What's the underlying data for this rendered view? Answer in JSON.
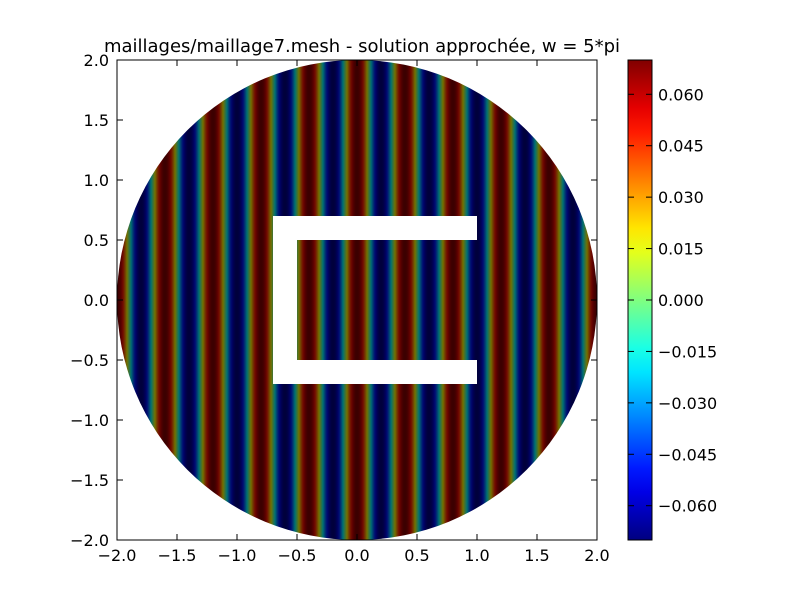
{
  "chart_data": {
    "type": "heatmap",
    "title": "maillages/maillage7.mesh - solution approchée, w = 5*pi",
    "xlabel": "",
    "ylabel": "",
    "xlim": [
      -2.0,
      2.0
    ],
    "ylim": [
      -2.0,
      2.0
    ],
    "x_ticks": [
      "−2.0",
      "−1.5",
      "−1.0",
      "−0.5",
      "0.0",
      "0.5",
      "1.0",
      "1.5",
      "2.0"
    ],
    "y_ticks": [
      "2.0",
      "1.5",
      "1.0",
      "0.5",
      "0.0",
      "−0.5",
      "−1.0",
      "−1.5",
      "−2.0"
    ],
    "x_tick_values": [
      -2.0,
      -1.5,
      -1.0,
      -0.5,
      0.0,
      0.5,
      1.0,
      1.5,
      2.0
    ],
    "y_tick_values": [
      2.0,
      1.5,
      1.0,
      0.5,
      0.0,
      -0.5,
      -1.0,
      -1.5,
      -2.0
    ],
    "domain": {
      "shape": "disk",
      "center": [
        0.0,
        0.0
      ],
      "radius": 2.0,
      "hole_polygon": [
        [
          -0.7,
          0.7
        ],
        [
          1.0,
          0.7
        ],
        [
          1.0,
          0.5
        ],
        [
          -0.5,
          0.5
        ],
        [
          -0.5,
          -0.5
        ],
        [
          1.0,
          -0.5
        ],
        [
          1.0,
          -0.7
        ],
        [
          -0.7,
          -0.7
        ]
      ]
    },
    "field": {
      "description": "vertical stripes, value varies with x",
      "amplitude": 0.07,
      "wavenumber_x": 15.707963,
      "phase": 0.0
    },
    "colorbar": {
      "colormap": "jet",
      "vmin": -0.07,
      "vmax": 0.07,
      "ticks": [
        "0.060",
        "0.045",
        "0.030",
        "0.015",
        "0.000",
        "−0.015",
        "−0.030",
        "−0.045",
        "−0.060"
      ],
      "tick_values": [
        0.06,
        0.045,
        0.03,
        0.015,
        0.0,
        -0.015,
        -0.03,
        -0.045,
        -0.06
      ]
    },
    "grid": false,
    "legend": "none"
  }
}
